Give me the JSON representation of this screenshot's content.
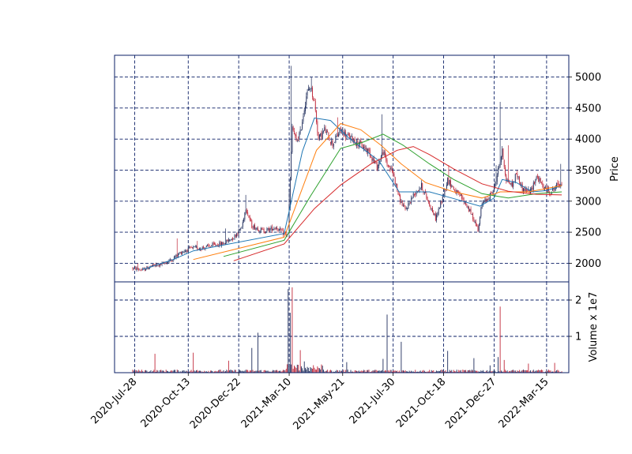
{
  "chart_data": {
    "type": "candlestick",
    "panels": [
      {
        "name": "price",
        "ylabel": "Price",
        "ylim": [
          1700,
          5350
        ],
        "yticks": [
          2000,
          2500,
          3000,
          3500,
          4000,
          4500,
          5000
        ]
      },
      {
        "name": "volume",
        "ylabel": "Volume x 1e7",
        "ylim": [
          0,
          2.5
        ],
        "yticks": [
          1,
          2
        ]
      }
    ],
    "xticks": [
      "2020-Jul-28",
      "2020-Oct-13",
      "2020-Dec-22",
      "2021-Mar-10",
      "2021-May-21",
      "2021-Jul-30",
      "2021-Oct-18",
      "2021-Dec-27",
      "2022-Mar-15"
    ],
    "xtick_index": [
      2,
      55,
      105,
      155,
      208,
      258,
      308,
      358,
      410
    ],
    "index_range": [
      -18,
      432
    ],
    "grid": true,
    "colors": {
      "up": "#1f2d5c",
      "down": "#c0283a",
      "frame": "#0b1f66"
    },
    "price_path": [
      [
        0,
        1920
      ],
      [
        10,
        1890
      ],
      [
        18,
        1950
      ],
      [
        28,
        1980
      ],
      [
        38,
        2050
      ],
      [
        48,
        2180
      ],
      [
        58,
        2240
      ],
      [
        70,
        2250
      ],
      [
        80,
        2290
      ],
      [
        90,
        2320
      ],
      [
        100,
        2420
      ],
      [
        108,
        2580
      ],
      [
        112,
        2900
      ],
      [
        118,
        2600
      ],
      [
        130,
        2520
      ],
      [
        142,
        2580
      ],
      [
        150,
        2470
      ],
      [
        154,
        2460
      ],
      [
        158,
        4200
      ],
      [
        162,
        3950
      ],
      [
        166,
        4100
      ],
      [
        172,
        4700
      ],
      [
        176,
        4850
      ],
      [
        180,
        4600
      ],
      [
        184,
        4000
      ],
      [
        190,
        4150
      ],
      [
        198,
        3920
      ],
      [
        206,
        4150
      ],
      [
        212,
        4050
      ],
      [
        218,
        4000
      ],
      [
        226,
        3900
      ],
      [
        234,
        3800
      ],
      [
        242,
        3550
      ],
      [
        248,
        3800
      ],
      [
        252,
        3600
      ],
      [
        258,
        3450
      ],
      [
        264,
        3050
      ],
      [
        270,
        2850
      ],
      [
        278,
        3100
      ],
      [
        286,
        3250
      ],
      [
        294,
        2950
      ],
      [
        300,
        2720
      ],
      [
        306,
        3000
      ],
      [
        312,
        3350
      ],
      [
        320,
        3150
      ],
      [
        326,
        3050
      ],
      [
        332,
        2900
      ],
      [
        338,
        2700
      ],
      [
        342,
        2550
      ],
      [
        346,
        2950
      ],
      [
        352,
        3050
      ],
      [
        358,
        3200
      ],
      [
        362,
        3500
      ],
      [
        366,
        3800
      ],
      [
        370,
        3350
      ],
      [
        376,
        3250
      ],
      [
        380,
        3450
      ],
      [
        386,
        3200
      ],
      [
        394,
        3150
      ],
      [
        400,
        3400
      ],
      [
        408,
        3200
      ],
      [
        414,
        3150
      ],
      [
        420,
        3250
      ],
      [
        425,
        3300
      ]
    ],
    "spikes": [
      [
        5,
        1995
      ],
      [
        44,
        2400
      ],
      [
        64,
        2360
      ],
      [
        92,
        2560
      ],
      [
        112,
        3100
      ],
      [
        155,
        3200
      ],
      [
        157,
        5180
      ],
      [
        177,
        5000
      ],
      [
        203,
        4350
      ],
      [
        247,
        4400
      ],
      [
        313,
        3580
      ],
      [
        360,
        3580
      ],
      [
        364,
        4600
      ],
      [
        372,
        3900
      ],
      [
        424,
        3600
      ]
    ],
    "ma_lines": [
      {
        "color": "#1f77b4",
        "period": 10,
        "points": [
          [
            10,
            1900
          ],
          [
            40,
            2060
          ],
          [
            60,
            2200
          ],
          [
            150,
            2480
          ],
          [
            168,
            3800
          ],
          [
            180,
            4340
          ],
          [
            196,
            4300
          ],
          [
            214,
            4020
          ],
          [
            244,
            3650
          ],
          [
            264,
            3150
          ],
          [
            294,
            3150
          ],
          [
            316,
            3050
          ],
          [
            344,
            2920
          ],
          [
            358,
            3050
          ],
          [
            366,
            3350
          ],
          [
            380,
            3300
          ],
          [
            396,
            3150
          ],
          [
            410,
            3170
          ],
          [
            425,
            3250
          ]
        ]
      },
      {
        "color": "#ff7f0e",
        "period": 20,
        "points": [
          [
            60,
            2060
          ],
          [
            150,
            2420
          ],
          [
            182,
            3820
          ],
          [
            206,
            4250
          ],
          [
            226,
            4150
          ],
          [
            246,
            3900
          ],
          [
            266,
            3600
          ],
          [
            290,
            3300
          ],
          [
            318,
            3150
          ],
          [
            346,
            3050
          ],
          [
            364,
            3150
          ],
          [
            392,
            3150
          ],
          [
            425,
            3250
          ]
        ]
      },
      {
        "color": "#2ca02c",
        "period": 30,
        "points": [
          [
            90,
            2110
          ],
          [
            150,
            2370
          ],
          [
            176,
            3080
          ],
          [
            206,
            3850
          ],
          [
            228,
            3950
          ],
          [
            248,
            4080
          ],
          [
            268,
            3900
          ],
          [
            294,
            3600
          ],
          [
            318,
            3350
          ],
          [
            346,
            3120
          ],
          [
            372,
            3050
          ],
          [
            400,
            3120
          ],
          [
            425,
            3150
          ]
        ]
      },
      {
        "color": "#d62728",
        "period": 40,
        "points": [
          [
            100,
            2040
          ],
          [
            150,
            2310
          ],
          [
            180,
            2880
          ],
          [
            206,
            3260
          ],
          [
            236,
            3600
          ],
          [
            262,
            3820
          ],
          [
            278,
            3880
          ],
          [
            294,
            3750
          ],
          [
            318,
            3520
          ],
          [
            346,
            3280
          ],
          [
            372,
            3160
          ],
          [
            400,
            3110
          ],
          [
            425,
            3100
          ]
        ]
      }
    ],
    "volume_spikes": [
      [
        22,
        0.52,
        "down"
      ],
      [
        60,
        0.55,
        "down"
      ],
      [
        95,
        0.33,
        "down"
      ],
      [
        118,
        0.68,
        "up"
      ],
      [
        124,
        1.1,
        "up"
      ],
      [
        154,
        2.3,
        "up"
      ],
      [
        156,
        1.65,
        "up"
      ],
      [
        158,
        2.35,
        "down"
      ],
      [
        166,
        0.62,
        "down"
      ],
      [
        170,
        0.31,
        "up"
      ],
      [
        212,
        0.29,
        "up"
      ],
      [
        248,
        0.38,
        "up"
      ],
      [
        252,
        1.6,
        "up"
      ],
      [
        266,
        0.85,
        "up"
      ],
      [
        312,
        0.6,
        "up"
      ],
      [
        338,
        0.4,
        "up"
      ],
      [
        354,
        0.2,
        "up"
      ],
      [
        362,
        0.43,
        "up"
      ],
      [
        364,
        1.82,
        "down"
      ],
      [
        368,
        0.35,
        "down"
      ],
      [
        392,
        0.25,
        "down"
      ],
      [
        418,
        0.27,
        "down"
      ],
      [
        427,
        0.6,
        "up"
      ]
    ]
  }
}
